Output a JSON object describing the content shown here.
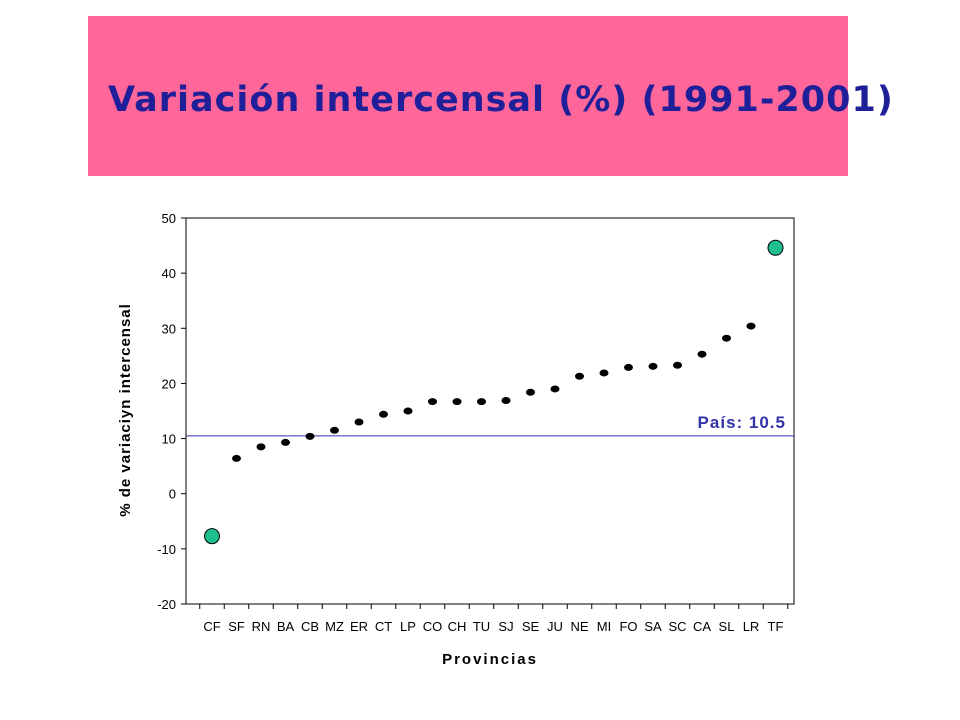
{
  "slide": {
    "title": "Variación intercensal (%) (1991-2001)",
    "banner_color": "#ff6699",
    "title_color": "#1f1f99"
  },
  "chart_data": {
    "type": "scatter",
    "categories": [
      "CF",
      "SF",
      "RN",
      "BA",
      "CB",
      "MZ",
      "ER",
      "CT",
      "LP",
      "CO",
      "CH",
      "TU",
      "SJ",
      "SE",
      "JU",
      "NE",
      "MI",
      "FO",
      "SA",
      "SC",
      "CA",
      "SL",
      "LR",
      "TF"
    ],
    "values": [
      -7.7,
      6.4,
      8.5,
      9.3,
      10.4,
      11.5,
      13.0,
      14.4,
      15.0,
      16.7,
      16.7,
      16.7,
      16.9,
      18.4,
      19.0,
      21.3,
      21.9,
      22.9,
      23.1,
      23.3,
      25.3,
      28.2,
      30.4,
      44.6
    ],
    "highlighted": [
      "CF",
      "TF"
    ],
    "xlabel": "Provincias",
    "ylabel": "% de variaciyn intercensal",
    "ylim": [
      -20,
      50
    ],
    "yticks": [
      50,
      40,
      30,
      20,
      10,
      0,
      -10,
      -20
    ],
    "reference_line": {
      "value": 10.5,
      "label": "País: 10.5",
      "color": "#3333aa"
    },
    "point_color": "#000000",
    "highlight_color": "#1fbf8f",
    "grid": false,
    "legend": "none"
  }
}
